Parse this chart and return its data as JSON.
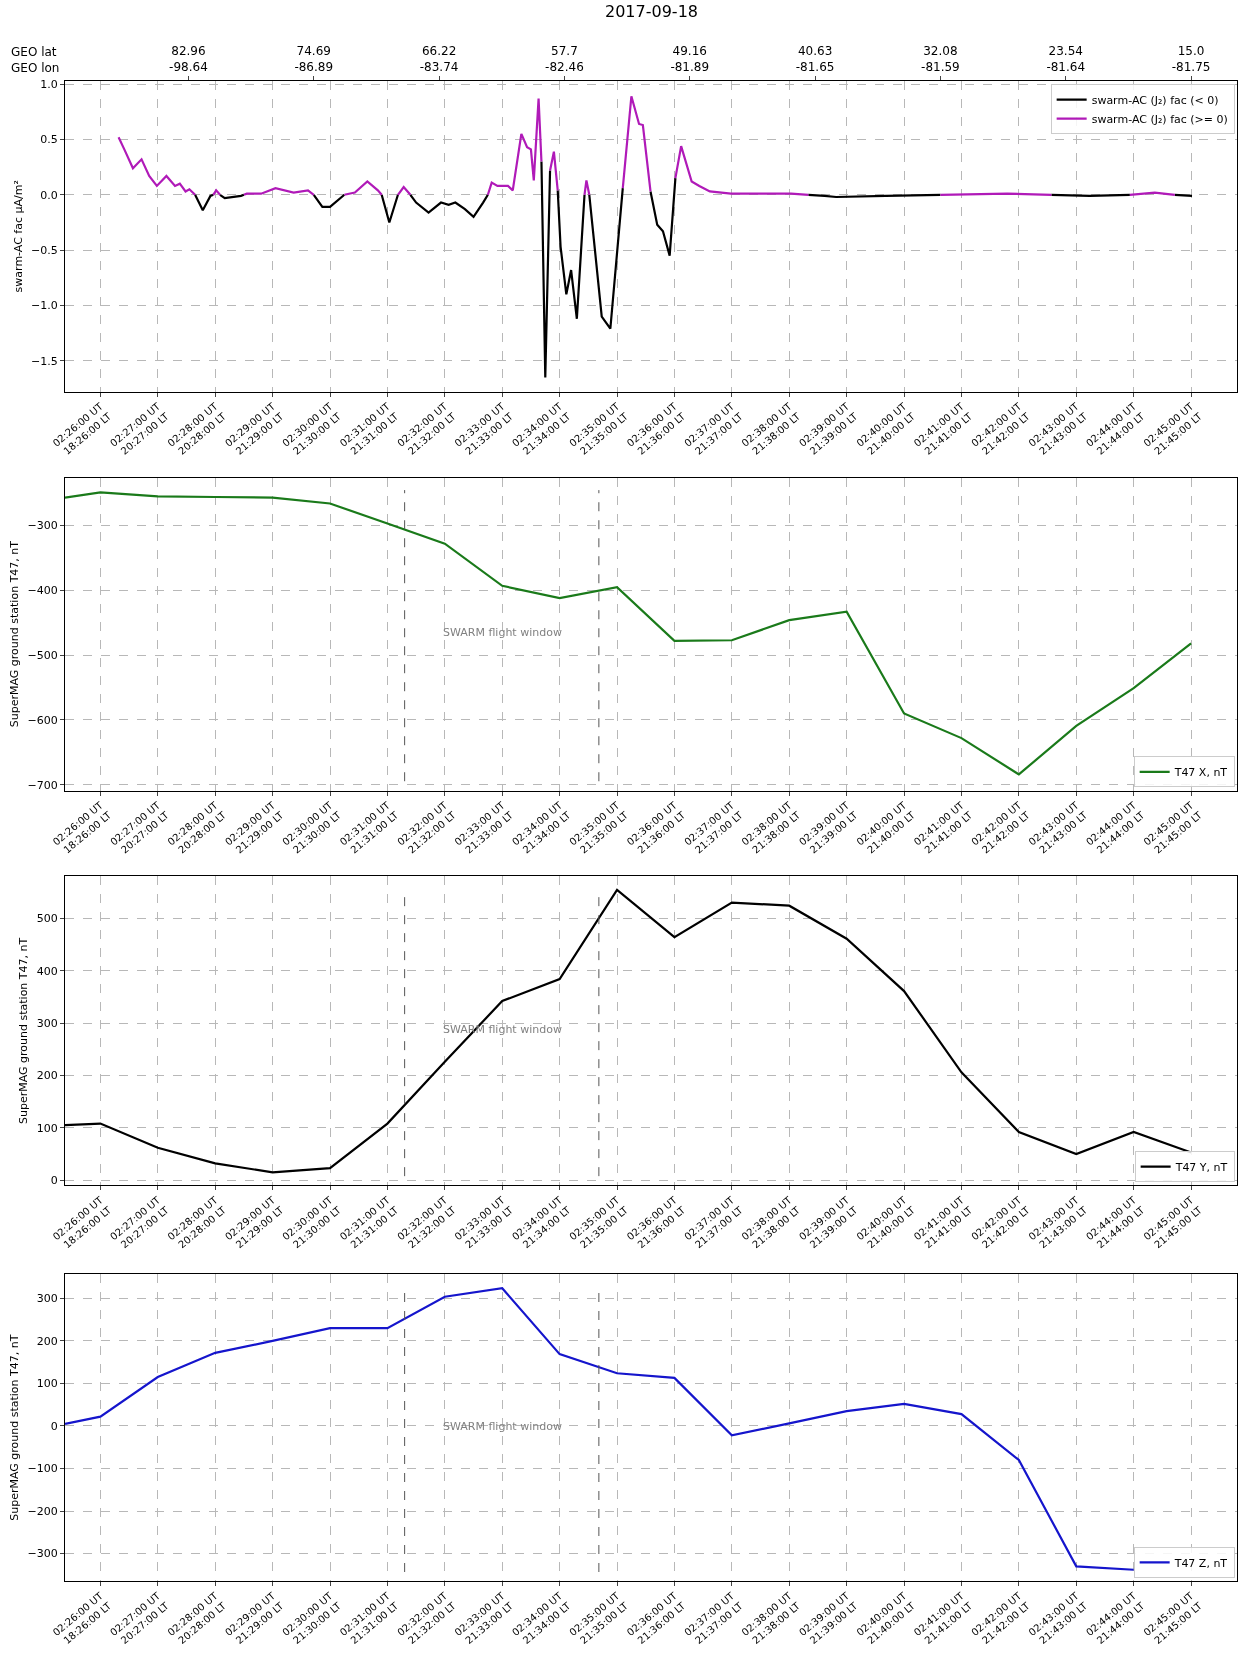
{
  "chart_data": [
    {
      "type": "line",
      "title": "2017-09-18",
      "ylabel": "swarm-AC fac µA/m²",
      "x2label": "GEO lat\nGEO lon",
      "xlim": [
        "2017-09-18T02:25:23",
        "2017-09-18T02:45:48"
      ],
      "xticks": [
        {
          "value": "2017-09-18T02:26",
          "label": "02:26:00 UT\n18:26:00 LT"
        },
        {
          "value": "2017-09-18T02:27",
          "label": "02:27:00 UT\n20:27:00 LT"
        },
        {
          "value": "2017-09-18T02:28",
          "label": "02:28:00 UT\n20:28:00 LT"
        },
        {
          "value": "2017-09-18T02:29",
          "label": "02:29:00 UT\n21:29:00 LT"
        },
        {
          "value": "2017-09-18T02:30",
          "label": "02:30:00 UT\n21:30:00 LT"
        },
        {
          "value": "2017-09-18T02:31",
          "label": "02:31:00 UT\n21:31:00 LT"
        },
        {
          "value": "2017-09-18T02:32",
          "label": "02:32:00 UT\n21:32:00 LT"
        },
        {
          "value": "2017-09-18T02:33",
          "label": "02:33:00 UT\n21:33:00 LT"
        },
        {
          "value": "2017-09-18T02:34",
          "label": "02:34:00 UT\n21:34:00 LT"
        },
        {
          "value": "2017-09-18T02:35",
          "label": "02:35:00 UT\n21:35:00 LT"
        },
        {
          "value": "2017-09-18T02:36",
          "label": "02:36:00 UT\n21:36:00 LT"
        },
        {
          "value": "2017-09-18T02:37",
          "label": "02:37:00 UT\n21:37:00 LT"
        },
        {
          "value": "2017-09-18T02:38",
          "label": "02:38:00 UT\n21:38:00 LT"
        },
        {
          "value": "2017-09-18T02:39",
          "label": "02:39:00 UT\n21:39:00 LT"
        },
        {
          "value": "2017-09-18T02:40",
          "label": "02:40:00 UT\n21:40:00 LT"
        },
        {
          "value": "2017-09-18T02:41",
          "label": "02:41:00 UT\n21:41:00 LT"
        },
        {
          "value": "2017-09-18T02:42",
          "label": "02:42:00 UT\n21:42:00 LT"
        },
        {
          "value": "2017-09-18T02:43",
          "label": "02:43:00 UT\n21:43:00 LT"
        },
        {
          "value": "2017-09-18T02:44",
          "label": "02:44:00 UT\n21:44:00 LT"
        },
        {
          "value": "2017-09-18T02:45",
          "label": "02:45:00 UT\n21:45:00 LT"
        }
      ],
      "x2lim": [
        "2017-09-18T02:25:23",
        "2017-09-18T02:45:48"
      ],
      "x2ticks": [
        {
          "value": "2017-09-18T02:27:32",
          "label": "82.96\n-98.64"
        },
        {
          "value": "2017-09-18T02:29:43",
          "label": "74.69\n-86.89"
        },
        {
          "value": "2017-09-18T02:31:54",
          "label": "66.22\n-83.74"
        },
        {
          "value": "2017-09-18T02:34:05",
          "label": "57.7\n-82.46"
        },
        {
          "value": "2017-09-18T02:36:16",
          "label": "49.16\n-81.89"
        },
        {
          "value": "2017-09-18T02:38:27",
          "label": "40.63\n-81.65"
        },
        {
          "value": "2017-09-18T02:40:38",
          "label": "32.08\n-81.59"
        },
        {
          "value": "2017-09-18T02:42:49",
          "label": "23.54\n-81.64"
        },
        {
          "value": "2017-09-18T02:45:00",
          "label": "15.0\n-81.75"
        }
      ],
      "ylim": [
        -1.78,
        1.03
      ],
      "yticks": [
        -1.5,
        {
          "value": -1,
          "label": "−1.0"
        },
        -0.5,
        {
          "value": 0,
          "label": "0.0"
        },
        0.5,
        {
          "value": 1,
          "label": "1.0"
        }
      ],
      "grid": true,
      "legend": "top right",
      "line_style": "solid",
      "marker": "none",
      "x": [
        "2017-09-18T02:26:19",
        "2017-09-18T02:26:25",
        "2017-09-18T02:26:34",
        "2017-09-18T02:26:43",
        "2017-09-18T02:26:51",
        "2017-09-18T02:26:59",
        "2017-09-18T02:27:09",
        "2017-09-18T02:27:18",
        "2017-09-18T02:27:23",
        "2017-09-18T02:27:29",
        "2017-09-18T02:27:33",
        "2017-09-18T02:27:39",
        "2017-09-18T02:27:47",
        "2017-09-18T02:27:55",
        "2017-09-18T02:27:58",
        "2017-09-18T02:28:01",
        "2017-09-18T02:28:05",
        "2017-09-18T02:28:10",
        "2017-09-18T02:28:27",
        "2017-09-18T02:28:30",
        "2017-09-18T02:28:33",
        "2017-09-18T02:28:48",
        "2017-09-18T02:29:03",
        "2017-09-18T02:29:22",
        "2017-09-18T02:29:37",
        "2017-09-18T02:29:43",
        "2017-09-18T02:29:52",
        "2017-09-18T02:30:00",
        "2017-09-18T02:30:15",
        "2017-09-18T02:30:26",
        "2017-09-18T02:30:39",
        "2017-09-18T02:30:50",
        "2017-09-18T02:30:54",
        "2017-09-18T02:31:02",
        "2017-09-18T02:31:11",
        "2017-09-18T02:31:17",
        "2017-09-18T02:31:24",
        "2017-09-18T02:31:30",
        "2017-09-18T02:31:43",
        "2017-09-18T02:31:56",
        "2017-09-18T02:32:04",
        "2017-09-18T02:32:11",
        "2017-09-18T02:32:21",
        "2017-09-18T02:32:30",
        "2017-09-18T02:32:40",
        "2017-09-18T02:32:45",
        "2017-09-18T02:32:49",
        "2017-09-18T02:32:55",
        "2017-09-18T02:33:06",
        "2017-09-18T02:33:11",
        "2017-09-18T02:33:20",
        "2017-09-18T02:33:26",
        "2017-09-18T02:33:30",
        "2017-09-18T02:33:33",
        "2017-09-18T02:33:38",
        "2017-09-18T02:33:41",
        "2017-09-18T02:33:45",
        "2017-09-18T02:33:50",
        "2017-09-18T02:33:54",
        "2017-09-18T02:33:58",
        "2017-09-18T02:34:01",
        "2017-09-18T02:34:07",
        "2017-09-18T02:34:12",
        "2017-09-18T02:34:18",
        "2017-09-18T02:34:26",
        "2017-09-18T02:34:28",
        "2017-09-18T02:34:31",
        "2017-09-18T02:34:44",
        "2017-09-18T02:34:53",
        "2017-09-18T02:35:06",
        "2017-09-18T02:35:15",
        "2017-09-18T02:35:23",
        "2017-09-18T02:35:27",
        "2017-09-18T02:35:35",
        "2017-09-18T02:35:42",
        "2017-09-18T02:35:48",
        "2017-09-18T02:35:55",
        "2017-09-18T02:36:01",
        "2017-09-18T02:36:07",
        "2017-09-18T02:36:18",
        "2017-09-18T02:36:26",
        "2017-09-18T02:36:37",
        "2017-09-18T02:36:59",
        "2017-09-18T02:37:28",
        "2017-09-18T02:38:02",
        "2017-09-18T02:38:20",
        "2017-09-18T02:38:37",
        "2017-09-18T02:38:49",
        "2017-09-18T02:39:41",
        "2017-09-18T02:40:38",
        "2017-09-18T02:41:48",
        "2017-09-18T02:42:34",
        "2017-09-18T02:43:14",
        "2017-09-18T02:43:56",
        "2017-09-18T02:44:22",
        "2017-09-18T02:44:43",
        "2017-09-18T02:45:01"
      ],
      "series": [
        {
          "name": "swarm-AC (J₂) fac (< 0)",
          "color": "#000000",
          "values": [
            null,
            null,
            null,
            null,
            null,
            null,
            null,
            null,
            null,
            null,
            null,
            0.0,
            -0.14,
            -0.01,
            0.0,
            null,
            0.0,
            -0.03,
            -0.01,
            0.0,
            null,
            null,
            null,
            null,
            null,
            0.0,
            -0.11,
            -0.11,
            0.0,
            null,
            null,
            null,
            0.0,
            -0.25,
            0.0,
            null,
            0.0,
            -0.07,
            -0.16,
            -0.07,
            -0.09,
            -0.07,
            -0.13,
            -0.2,
            -0.07,
            0.0,
            null,
            null,
            null,
            null,
            null,
            null,
            null,
            null,
            null,
            0.3,
            -1.65,
            0.22,
            null,
            0.04,
            -0.47,
            -0.9,
            -0.68,
            -1.12,
            0.0,
            null,
            0.0,
            -1.1,
            -1.21,
            0.06,
            null,
            null,
            null,
            0.03,
            -0.27,
            -0.33,
            -0.55,
            0.15,
            null,
            null,
            null,
            null,
            null,
            null,
            null,
            0.0,
            -0.01,
            -0.02,
            -0.01,
            0.0,
            null,
            0.0,
            -0.01,
            0.0,
            null,
            0.0,
            -0.01
          ]
        },
        {
          "name": "swarm-AC (J₂) fac (>= 0)",
          "color": "#b01ab8",
          "values": [
            0.52,
            0.41,
            0.24,
            0.32,
            0.17,
            0.08,
            0.17,
            0.08,
            0.1,
            0.03,
            0.05,
            0.0,
            null,
            null,
            0.0,
            0.04,
            0.0,
            null,
            null,
            0.0,
            0.01,
            0.01,
            0.06,
            0.02,
            0.04,
            0.0,
            null,
            null,
            0.0,
            0.02,
            0.12,
            0.04,
            0.0,
            null,
            0.0,
            0.07,
            0.0,
            null,
            null,
            null,
            null,
            null,
            null,
            null,
            null,
            0.0,
            0.11,
            0.08,
            0.08,
            0.04,
            0.55,
            0.43,
            0.41,
            0.13,
            0.87,
            0.3,
            null,
            0.22,
            0.39,
            0.04,
            null,
            null,
            null,
            null,
            0.0,
            0.13,
            0.0,
            null,
            null,
            0.06,
            0.89,
            0.64,
            0.63,
            0.03,
            null,
            null,
            null,
            0.15,
            0.44,
            0.12,
            0.08,
            0.03,
            0.01,
            0.01,
            0.01,
            0.0,
            null,
            null,
            null,
            0.0,
            0.01,
            0.0,
            null,
            0.0,
            0.02,
            0.0,
            null
          ]
        }
      ]
    },
    {
      "type": "line",
      "ylabel": "SuperMAG ground station T47, nT",
      "xlim": [
        "2017-09-18T02:25:23",
        "2017-09-18T02:45:48"
      ],
      "xticks": [
        {
          "value": "2017-09-18T02:26",
          "label": "02:26:00 UT\n18:26:00 LT"
        },
        {
          "value": "2017-09-18T02:27",
          "label": "02:27:00 UT\n20:27:00 LT"
        },
        {
          "value": "2017-09-18T02:28",
          "label": "02:28:00 UT\n20:28:00 LT"
        },
        {
          "value": "2017-09-18T02:29",
          "label": "02:29:00 UT\n21:29:00 LT"
        },
        {
          "value": "2017-09-18T02:30",
          "label": "02:30:00 UT\n21:30:00 LT"
        },
        {
          "value": "2017-09-18T02:31",
          "label": "02:31:00 UT\n21:31:00 LT"
        },
        {
          "value": "2017-09-18T02:32",
          "label": "02:32:00 UT\n21:32:00 LT"
        },
        {
          "value": "2017-09-18T02:33",
          "label": "02:33:00 UT\n21:33:00 LT"
        },
        {
          "value": "2017-09-18T02:34",
          "label": "02:34:00 UT\n21:34:00 LT"
        },
        {
          "value": "2017-09-18T02:35",
          "label": "02:35:00 UT\n21:35:00 LT"
        },
        {
          "value": "2017-09-18T02:36",
          "label": "02:36:00 UT\n21:36:00 LT"
        },
        {
          "value": "2017-09-18T02:37",
          "label": "02:37:00 UT\n21:37:00 LT"
        },
        {
          "value": "2017-09-18T02:38",
          "label": "02:38:00 UT\n21:38:00 LT"
        },
        {
          "value": "2017-09-18T02:39",
          "label": "02:39:00 UT\n21:39:00 LT"
        },
        {
          "value": "2017-09-18T02:40",
          "label": "02:40:00 UT\n21:40:00 LT"
        },
        {
          "value": "2017-09-18T02:41",
          "label": "02:41:00 UT\n21:41:00 LT"
        },
        {
          "value": "2017-09-18T02:42",
          "label": "02:42:00 UT\n21:42:00 LT"
        },
        {
          "value": "2017-09-18T02:43",
          "label": "02:43:00 UT\n21:43:00 LT"
        },
        {
          "value": "2017-09-18T02:44",
          "label": "02:44:00 UT\n21:44:00 LT"
        },
        {
          "value": "2017-09-18T02:45",
          "label": "02:45:00 UT\n21:45:00 LT"
        }
      ],
      "ylim": [
        -709,
        -226
      ],
      "yticks": [
        -700,
        -600,
        -500,
        -400,
        -300
      ],
      "grid": true,
      "legend": "bottom right",
      "line_style": "solid",
      "marker": "none",
      "x": [
        "2017-09-18T02:25:23",
        "2017-09-18T02:26",
        "2017-09-18T02:27",
        "2017-09-18T02:28",
        "2017-09-18T02:29",
        "2017-09-18T02:30",
        "2017-09-18T02:31",
        "2017-09-18T02:32",
        "2017-09-18T02:33",
        "2017-09-18T02:34",
        "2017-09-18T02:35",
        "2017-09-18T02:36",
        "2017-09-18T02:37",
        "2017-09-18T02:38",
        "2017-09-18T02:39",
        "2017-09-18T02:40",
        "2017-09-18T02:41",
        "2017-09-18T02:42",
        "2017-09-18T02:43",
        "2017-09-18T02:44",
        "2017-09-18T02:45"
      ],
      "series": [
        {
          "name": "T47 X, nT",
          "color": "#1a7a1a",
          "values": [
            -257,
            -249,
            -255,
            -256,
            -257,
            -266,
            -297,
            -328,
            -393,
            -412,
            -395,
            -478,
            -477,
            -446,
            -433,
            -590,
            -628,
            -684,
            -609,
            -551,
            -482
          ]
        }
      ],
      "ref_lines": [
        {
          "axis": "x",
          "value": "2017-09-18T02:31:18",
          "color": "#555555",
          "line_style": "dashed"
        },
        {
          "axis": "x",
          "value": "2017-09-18T02:34:41",
          "color": "#555555",
          "line_style": "dashed"
        }
      ],
      "annotations": [
        "SWARM flight window"
      ]
    },
    {
      "type": "line",
      "ylabel": "SuperMAG ground station T47, nT",
      "xlim": [
        "2017-09-18T02:25:23",
        "2017-09-18T02:45:48"
      ],
      "xticks": [
        {
          "value": "2017-09-18T02:26",
          "label": "02:26:00 UT\n18:26:00 LT"
        },
        {
          "value": "2017-09-18T02:27",
          "label": "02:27:00 UT\n20:27:00 LT"
        },
        {
          "value": "2017-09-18T02:28",
          "label": "02:28:00 UT\n20:28:00 LT"
        },
        {
          "value": "2017-09-18T02:29",
          "label": "02:29:00 UT\n21:29:00 LT"
        },
        {
          "value": "2017-09-18T02:30",
          "label": "02:30:00 UT\n21:30:00 LT"
        },
        {
          "value": "2017-09-18T02:31",
          "label": "02:31:00 UT\n21:31:00 LT"
        },
        {
          "value": "2017-09-18T02:32",
          "label": "02:32:00 UT\n21:32:00 LT"
        },
        {
          "value": "2017-09-18T02:33",
          "label": "02:33:00 UT\n21:33:00 LT"
        },
        {
          "value": "2017-09-18T02:34",
          "label": "02:34:00 UT\n21:34:00 LT"
        },
        {
          "value": "2017-09-18T02:35",
          "label": "02:35:00 UT\n21:35:00 LT"
        },
        {
          "value": "2017-09-18T02:36",
          "label": "02:36:00 UT\n21:36:00 LT"
        },
        {
          "value": "2017-09-18T02:37",
          "label": "02:37:00 UT\n21:37:00 LT"
        },
        {
          "value": "2017-09-18T02:38",
          "label": "02:38:00 UT\n21:38:00 LT"
        },
        {
          "value": "2017-09-18T02:39",
          "label": "02:39:00 UT\n21:39:00 LT"
        },
        {
          "value": "2017-09-18T02:40",
          "label": "02:40:00 UT\n21:40:00 LT"
        },
        {
          "value": "2017-09-18T02:41",
          "label": "02:41:00 UT\n21:41:00 LT"
        },
        {
          "value": "2017-09-18T02:42",
          "label": "02:42:00 UT\n21:42:00 LT"
        },
        {
          "value": "2017-09-18T02:43",
          "label": "02:43:00 UT\n21:43:00 LT"
        },
        {
          "value": "2017-09-18T02:44",
          "label": "02:44:00 UT\n21:44:00 LT"
        },
        {
          "value": "2017-09-18T02:45",
          "label": "02:45:00 UT\n21:45:00 LT"
        }
      ],
      "ylim": [
        -10,
        580
      ],
      "yticks": [
        0,
        100,
        200,
        300,
        400,
        500
      ],
      "grid": true,
      "legend": "bottom right",
      "line_style": "solid",
      "marker": "none",
      "x": [
        "2017-09-18T02:25:23",
        "2017-09-18T02:26",
        "2017-09-18T02:27",
        "2017-09-18T02:28",
        "2017-09-18T02:29",
        "2017-09-18T02:30",
        "2017-09-18T02:31",
        "2017-09-18T02:32",
        "2017-09-18T02:33",
        "2017-09-18T02:34",
        "2017-09-18T02:35",
        "2017-09-18T02:36",
        "2017-09-18T02:37",
        "2017-09-18T02:38",
        "2017-09-18T02:39",
        "2017-09-18T02:40",
        "2017-09-18T02:41",
        "2017-09-18T02:42",
        "2017-09-18T02:43",
        "2017-09-18T02:44",
        "2017-09-18T02:45"
      ],
      "series": [
        {
          "name": "T47 Y, nT",
          "color": "#000000",
          "values": [
            105,
            108,
            62,
            32,
            15,
            23,
            108,
            226,
            342,
            384,
            554,
            464,
            530,
            524,
            461,
            361,
            206,
            92,
            50,
            92,
            53
          ]
        }
      ],
      "ref_lines": [
        {
          "axis": "x",
          "value": "2017-09-18T02:31:18",
          "color": "#555555",
          "line_style": "dashed"
        },
        {
          "axis": "x",
          "value": "2017-09-18T02:34:41",
          "color": "#555555",
          "line_style": "dashed"
        }
      ],
      "annotations": [
        "SWARM flight window"
      ]
    },
    {
      "type": "line",
      "ylabel": "SuperMAG ground station T47, nT",
      "xlim": [
        "2017-09-18T02:25:23",
        "2017-09-18T02:45:48"
      ],
      "xticks": [
        {
          "value": "2017-09-18T02:26",
          "label": "02:26:00 UT\n18:26:00 LT"
        },
        {
          "value": "2017-09-18T02:27",
          "label": "02:27:00 UT\n20:27:00 LT"
        },
        {
          "value": "2017-09-18T02:28",
          "label": "02:28:00 UT\n20:28:00 LT"
        },
        {
          "value": "2017-09-18T02:29",
          "label": "02:29:00 UT\n21:29:00 LT"
        },
        {
          "value": "2017-09-18T02:30",
          "label": "02:30:00 UT\n21:30:00 LT"
        },
        {
          "value": "2017-09-18T02:31",
          "label": "02:31:00 UT\n21:31:00 LT"
        },
        {
          "value": "2017-09-18T02:32",
          "label": "02:32:00 UT\n21:32:00 LT"
        },
        {
          "value": "2017-09-18T02:33",
          "label": "02:33:00 UT\n21:33:00 LT"
        },
        {
          "value": "2017-09-18T02:34",
          "label": "02:34:00 UT\n21:34:00 LT"
        },
        {
          "value": "2017-09-18T02:35",
          "label": "02:35:00 UT\n21:35:00 LT"
        },
        {
          "value": "2017-09-18T02:36",
          "label": "02:36:00 UT\n21:36:00 LT"
        },
        {
          "value": "2017-09-18T02:37",
          "label": "02:37:00 UT\n21:37:00 LT"
        },
        {
          "value": "2017-09-18T02:38",
          "label": "02:38:00 UT\n21:38:00 LT"
        },
        {
          "value": "2017-09-18T02:39",
          "label": "02:39:00 UT\n21:39:00 LT"
        },
        {
          "value": "2017-09-18T02:40",
          "label": "02:40:00 UT\n21:40:00 LT"
        },
        {
          "value": "2017-09-18T02:41",
          "label": "02:41:00 UT\n21:41:00 LT"
        },
        {
          "value": "2017-09-18T02:42",
          "label": "02:42:00 UT\n21:42:00 LT"
        },
        {
          "value": "2017-09-18T02:43",
          "label": "02:43:00 UT\n21:43:00 LT"
        },
        {
          "value": "2017-09-18T02:44",
          "label": "02:44:00 UT\n21:44:00 LT"
        },
        {
          "value": "2017-09-18T02:45",
          "label": "02:45:00 UT\n21:45:00 LT"
        }
      ],
      "ylim": [
        -365,
        357
      ],
      "yticks": [
        -300,
        -200,
        -100,
        0,
        100,
        200,
        300
      ],
      "grid": true,
      "legend": "bottom right",
      "line_style": "solid",
      "marker": "none",
      "x": [
        "2017-09-18T02:25:23",
        "2017-09-18T02:26",
        "2017-09-18T02:27",
        "2017-09-18T02:28",
        "2017-09-18T02:29",
        "2017-09-18T02:30",
        "2017-09-18T02:31",
        "2017-09-18T02:32",
        "2017-09-18T02:33",
        "2017-09-18T02:34",
        "2017-09-18T02:35",
        "2017-09-18T02:36",
        "2017-09-18T02:37",
        "2017-09-18T02:38",
        "2017-09-18T02:39",
        "2017-09-18T02:40",
        "2017-09-18T02:41",
        "2017-09-18T02:42",
        "2017-09-18T02:43",
        "2017-09-18T02:44"
      ],
      "series": [
        {
          "name": "T47 Z, nT",
          "color": "#1515cc",
          "values": [
            5,
            22,
            115,
            172,
            200,
            230,
            230,
            304,
            324,
            169,
            124,
            113,
            -22,
            6,
            35,
            52,
            28,
            -80,
            -330,
            -338
          ]
        }
      ],
      "ref_lines": [
        {
          "axis": "x",
          "value": "2017-09-18T02:31:18",
          "color": "#555555",
          "line_style": "dashed"
        },
        {
          "axis": "x",
          "value": "2017-09-18T02:34:41",
          "color": "#555555",
          "line_style": "dashed"
        }
      ],
      "annotations": [
        "SWARM flight window"
      ]
    }
  ]
}
